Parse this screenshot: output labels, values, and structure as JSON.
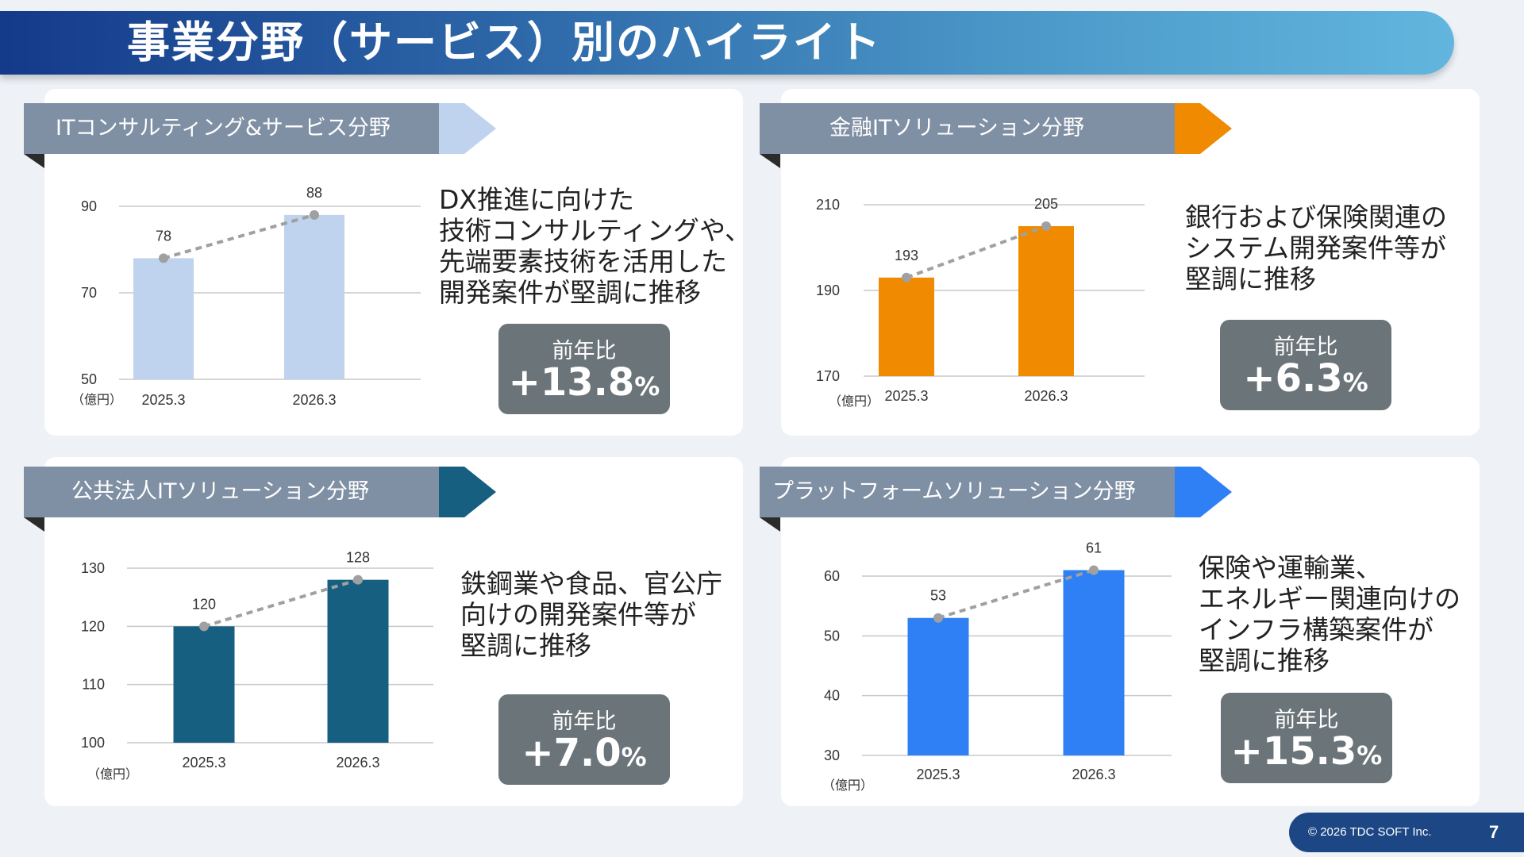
{
  "title": "事業分野（サービス）別のハイライト",
  "yoy_label": "前年比",
  "footer": {
    "copyright": "© 2026 TDC SOFT Inc.",
    "page": "7"
  },
  "colors": {
    "ribbon_gray": "#7f8fa4",
    "yoy_box": "#6b7579"
  },
  "panels": [
    {
      "label": "ITコンサルティング&サービス分野",
      "accent": "#bfd3ee",
      "bar_color": "#bfd3ee",
      "description": "DX推進に向けた\n技術コンサルティングや、\n先端要素技術を活用した\n開発案件が堅調に推移",
      "yoy_value": "+13.8",
      "yoy_unit": "%"
    },
    {
      "label": "金融ITソリューション分野",
      "accent": "#f08a00",
      "bar_color": "#f08a00",
      "description": "銀行および保険関連の\nシステム開発案件等が\n堅調に推移",
      "yoy_value": "+6.3",
      "yoy_unit": "%"
    },
    {
      "label": "公共法人ITソリューション分野",
      "accent": "#165f80",
      "bar_color": "#165f80",
      "description": "鉄鋼業や食品、官公庁\n向けの開発案件等が\n堅調に推移",
      "yoy_value": "+7.0",
      "yoy_unit": "%"
    },
    {
      "label": "プラットフォームソリューション分野",
      "accent": "#2f7ff5",
      "bar_color": "#2f7ff5",
      "description": "保険や運輸業、\nエネルギー関連向けの\nインフラ構築案件が\n堅調に推移",
      "yoy_value": "+15.3",
      "yoy_unit": "%"
    }
  ],
  "chart_data": [
    {
      "type": "bar",
      "unit": "（億円）",
      "categories": [
        "2025.3",
        "2026.3"
      ],
      "values": [
        78,
        88
      ],
      "ylim": [
        50,
        90
      ],
      "yticks": [
        50,
        70,
        90
      ],
      "grid": true,
      "trend_line": "dashed"
    },
    {
      "type": "bar",
      "unit": "（億円）",
      "categories": [
        "2025.3",
        "2026.3"
      ],
      "values": [
        193,
        205
      ],
      "ylim": [
        170,
        210
      ],
      "yticks": [
        170,
        190,
        210
      ],
      "grid": true,
      "trend_line": "dashed"
    },
    {
      "type": "bar",
      "unit": "（億円）",
      "categories": [
        "2025.3",
        "2026.3"
      ],
      "values": [
        120,
        128
      ],
      "ylim": [
        100,
        130
      ],
      "yticks": [
        100,
        110,
        120,
        130
      ],
      "grid": true,
      "trend_line": "dashed"
    },
    {
      "type": "bar",
      "unit": "（億円）",
      "categories": [
        "2025.3",
        "2026.3"
      ],
      "values": [
        53,
        61
      ],
      "ylim": [
        30,
        60
      ],
      "yticks": [
        30,
        40,
        50,
        60
      ],
      "grid": true,
      "trend_line": "dashed"
    }
  ]
}
